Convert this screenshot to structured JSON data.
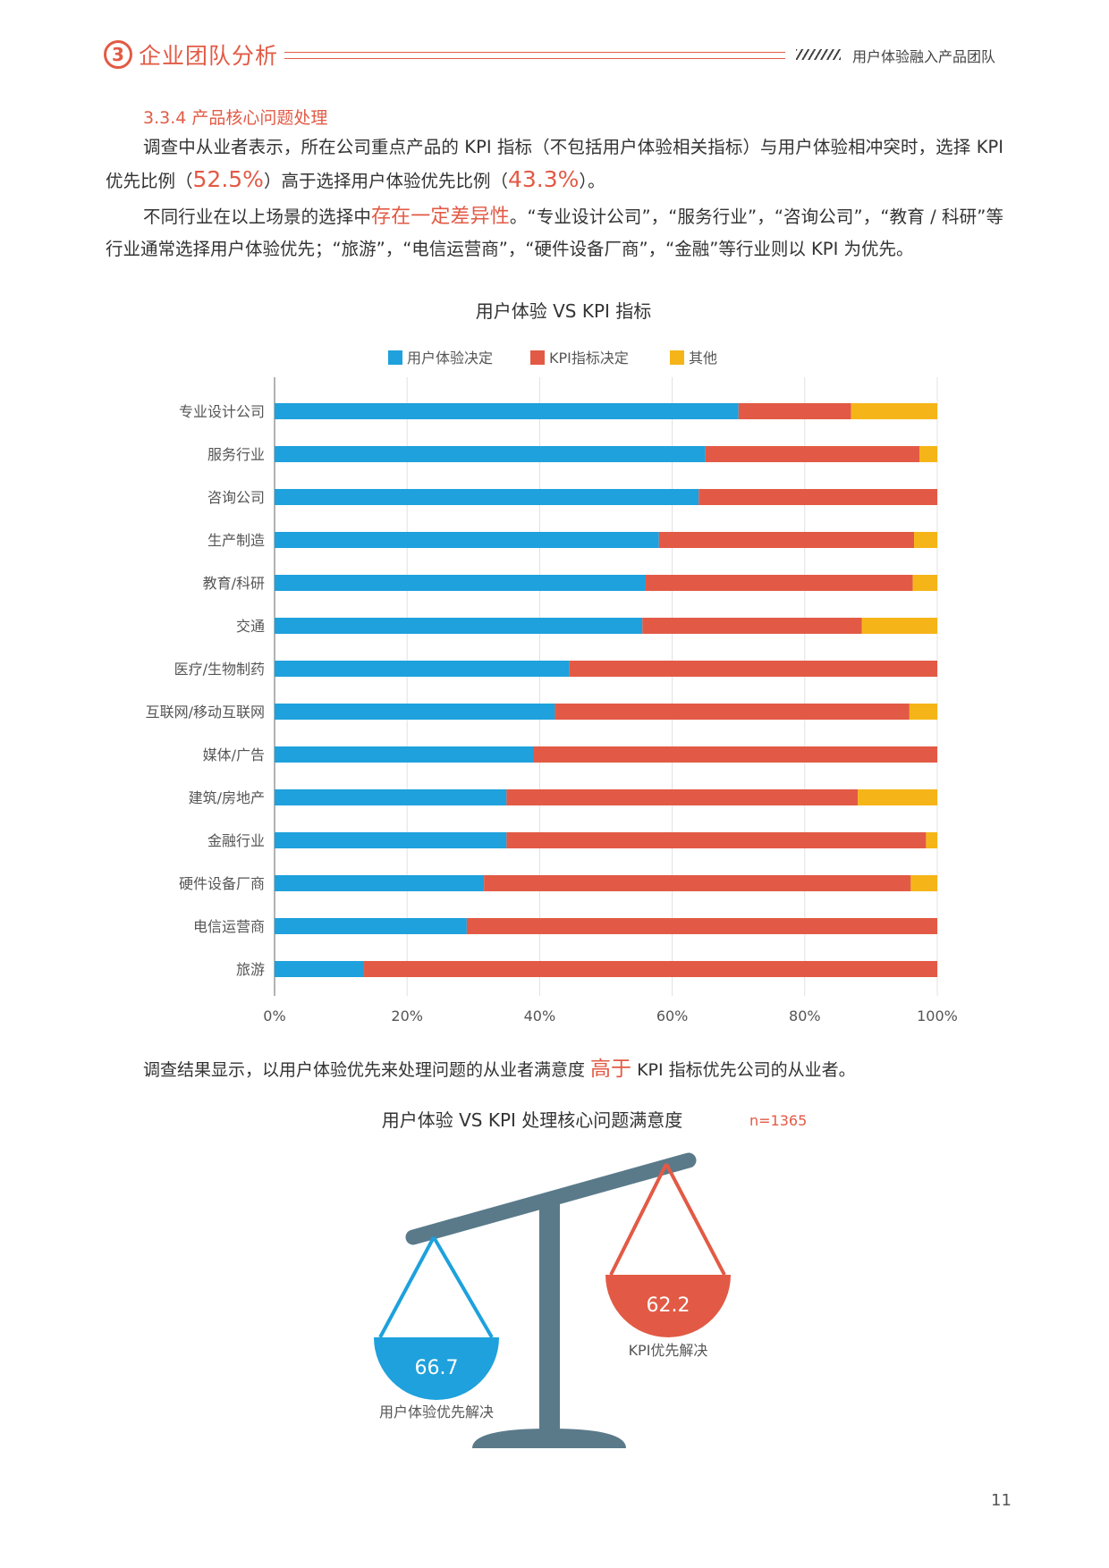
{
  "header": {
    "section_number": "3",
    "section_title": "企业团队分析",
    "right_title": "用户体验融入产品团队"
  },
  "subheading": "3.3.4 产品核心问题处理",
  "paragraph1": {
    "part1": "调查中从业者表示，所在公司重点产品的 KPI 指标（不包括用户体验相关指标）与用户体验相冲突时，选择 KPI 优先比例（",
    "value1": "52.5%",
    "part2": "）高于选择用户体验优先比例（",
    "value2": "43.3%",
    "part3": "）。"
  },
  "paragraph2": {
    "part1": "不同行业在以上场景的选择中",
    "highlight": "存在一定差异性",
    "part2": "。“专业设计公司”，“服务行业”，“咨询公司”，“教育 / 科研”等行业通常选择用户体验优先；“旅游”，“电信运营商”，“硬件设备厂商”，“金融”等行业则以 KPI 为优先。"
  },
  "colors": {
    "ux": "#1ea1dc",
    "kpi": "#e25a45",
    "other": "#f5b518",
    "scale": "#5a7a8a",
    "accent": "#e25a45"
  },
  "chart_data": [
    {
      "type": "bar",
      "orientation": "horizontal",
      "stacked": true,
      "title": "用户体验 VS KPI 指标",
      "legend_position": "top",
      "xlim": [
        0,
        100
      ],
      "x_ticks": [
        "0%",
        "20%",
        "40%",
        "60%",
        "80%",
        "100%"
      ],
      "categories": [
        "专业设计公司",
        "服务行业",
        "咨询公司",
        "生产制造",
        "教育/科研",
        "交通",
        "医疗/生物制药",
        "互联网/移动互联网",
        "媒体/广告",
        "建筑/房地产",
        "金融行业",
        "硬件设备厂商",
        "电信运营商",
        "旅游"
      ],
      "series": [
        {
          "name": "用户体验决定",
          "values": [
            70.0,
            65.0,
            64.0,
            58.0,
            56.0,
            55.5,
            44.5,
            42.3,
            39.0,
            35.0,
            35.0,
            31.6,
            29.0,
            13.5
          ]
        },
        {
          "name": "KPI指标决定",
          "values": [
            17.0,
            32.3,
            36.0,
            38.5,
            40.3,
            33.1,
            55.5,
            53.5,
            61.0,
            53.0,
            63.3,
            64.4,
            71.0,
            86.5
          ]
        },
        {
          "name": "其他",
          "values": [
            13.0,
            2.7,
            0.0,
            3.5,
            3.7,
            11.4,
            0.0,
            4.2,
            0.0,
            12.0,
            1.7,
            4.0,
            0.0,
            0.0
          ]
        }
      ]
    },
    {
      "type": "other",
      "title": "用户体验 VS KPI 处理核心问题满意度",
      "note": "n=1365",
      "items": [
        {
          "label": "用户体验优先解决",
          "value": "66.7"
        },
        {
          "label": "KPI优先解决",
          "value": "62.2"
        }
      ]
    }
  ],
  "conclusion": {
    "part1": "调查结果显示，以用户体验优先来处理问题的从业者满意度 ",
    "highlight": "高于",
    "part2": " KPI 指标优先公司的从业者。"
  },
  "page_number": "11"
}
